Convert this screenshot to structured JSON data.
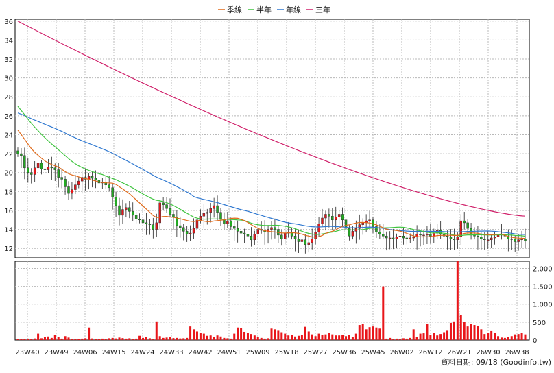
{
  "chart_data": {
    "type": "candlestick-volume",
    "legend": [
      {
        "name": "季線",
        "color": "#e06a1a"
      },
      {
        "name": "半年",
        "color": "#3fc43f"
      },
      {
        "name": "年線",
        "color": "#2f78d0"
      },
      {
        "name": "三年",
        "color": "#d0206a"
      }
    ],
    "legend_position": "top-center",
    "price_axis": {
      "ylim": [
        11,
        36.2
      ],
      "ticks": [
        12,
        14,
        16,
        18,
        20,
        22,
        24,
        26,
        28,
        30,
        32,
        34,
        36
      ],
      "side": "left"
    },
    "volume_axis": {
      "ylim": [
        0,
        2200
      ],
      "ticks": [
        0,
        500,
        1000,
        1500,
        2000
      ],
      "tick_labels": [
        "0",
        "500",
        "1,000",
        "1,500",
        "2,000"
      ],
      "side": "right"
    },
    "grid": true,
    "colors": {
      "up": "#e8161a",
      "down": "#22aa22",
      "volume": "#e8161a"
    },
    "x_tick_labels": [
      "23W40",
      "23W49",
      "24W06",
      "24W15",
      "24W24",
      "24W33",
      "24W42",
      "24W51",
      "25W09",
      "25W18",
      "25W27",
      "25W36",
      "25W45",
      "26W02",
      "26W12",
      "26W21",
      "26W30",
      "26W38"
    ],
    "closes": [
      22.0,
      21.8,
      20.5,
      20.0,
      19.8,
      20.5,
      21.0,
      20.4,
      20.3,
      20.6,
      20.5,
      20.3,
      19.5,
      19.3,
      18.5,
      17.8,
      18.2,
      18.7,
      19.1,
      19.5,
      19.3,
      19.6,
      19.4,
      19.2,
      18.9,
      19.0,
      18.7,
      18.4,
      17.4,
      16.5,
      15.5,
      16.1,
      16.3,
      15.9,
      15.5,
      15.1,
      15.0,
      14.7,
      14.6,
      14.5,
      14.0,
      14.7,
      16.8,
      16.6,
      16.2,
      15.6,
      15.3,
      14.4,
      14.2,
      13.8,
      13.5,
      13.6,
      14.1,
      15.0,
      15.4,
      15.7,
      15.8,
      16.2,
      16.5,
      15.8,
      15.1,
      14.6,
      14.9,
      14.3,
      14.1,
      13.8,
      13.6,
      13.5,
      13.3,
      12.9,
      13.5,
      14.0,
      13.9,
      13.7,
      14.0,
      14.2,
      14.0,
      13.4,
      13.0,
      13.6,
      13.7,
      13.3,
      13.0,
      12.7,
      12.9,
      12.4,
      12.6,
      13.0,
      13.7,
      14.6,
      15.2,
      15.6,
      15.4,
      15.0,
      15.3,
      15.6,
      15.0,
      14.1,
      13.3,
      13.8,
      14.1,
      14.5,
      14.7,
      14.9,
      15.0,
      14.3,
      13.7,
      13.5,
      13.3,
      13.1,
      13.1,
      13.0,
      13.2,
      13.3,
      13.1,
      13.0,
      13.1,
      13.2,
      13.5,
      13.4,
      13.4,
      13.5,
      13.3,
      13.6,
      13.9,
      13.5,
      13.3,
      13.2,
      13.0,
      12.9,
      13.2,
      14.9,
      14.7,
      14.1,
      13.4,
      13.3,
      13.2,
      13.0,
      12.9,
      12.9,
      13.1,
      13.2,
      13.4,
      13.5,
      13.3,
      13.0,
      13.0,
      12.7,
      12.9,
      13.0,
      12.8
    ],
    "volumes": [
      20,
      30,
      25,
      40,
      35,
      45,
      180,
      50,
      80,
      100,
      60,
      140,
      90,
      40,
      110,
      70,
      30,
      35,
      25,
      40,
      50,
      350,
      45,
      20,
      30,
      40,
      35,
      50,
      60,
      45,
      70,
      55,
      40,
      50,
      30,
      40,
      120,
      60,
      90,
      50,
      30,
      520,
      110,
      60,
      70,
      80,
      55,
      60,
      45,
      50,
      60,
      380,
      300,
      240,
      200,
      180,
      120,
      130,
      90,
      130,
      100,
      60,
      50,
      40,
      180,
      350,
      330,
      230,
      200,
      170,
      130,
      90,
      60,
      40,
      50,
      320,
      300,
      260,
      220,
      180,
      130,
      140,
      100,
      120,
      150,
      370,
      240,
      160,
      110,
      180,
      150,
      160,
      200,
      160,
      130,
      130,
      150,
      110,
      140,
      80,
      180,
      420,
      440,
      300,
      360,
      380,
      350,
      320,
      1500,
      40,
      60,
      30,
      40,
      30,
      50,
      40,
      60,
      300,
      90,
      180,
      190,
      440,
      150,
      200,
      130,
      170,
      220,
      260,
      480,
      520,
      2200,
      700,
      500,
      380,
      450,
      420,
      400,
      300,
      170,
      200,
      250,
      200,
      110,
      70,
      60,
      80,
      110,
      160,
      170,
      200,
      160
    ]
  },
  "footer": {
    "text": "資料日期: 09/18  (Goodinfo.tw)"
  }
}
